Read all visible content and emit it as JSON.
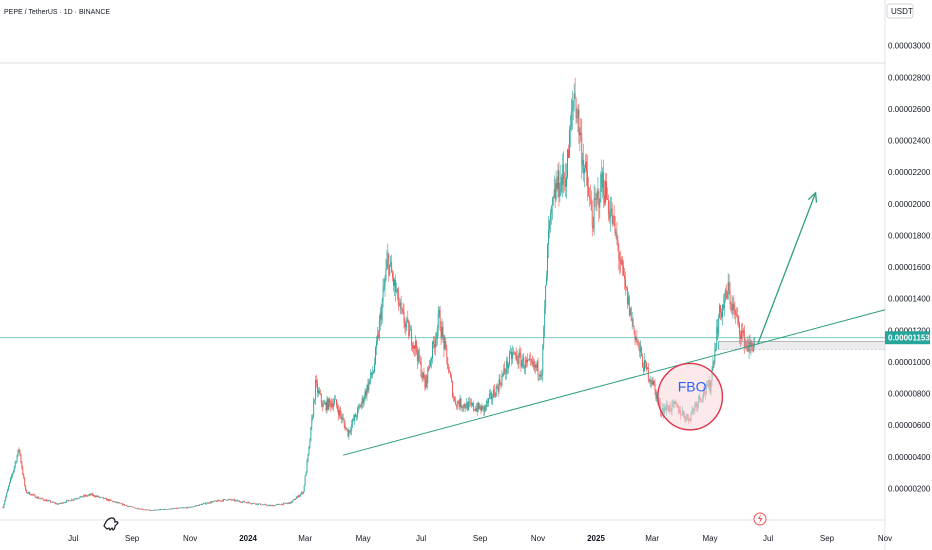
{
  "header": {
    "symbol_title": "PEPE / TetherUS · 1D · BINANCE",
    "currency_button": "USDT"
  },
  "price_label": "0.00001153",
  "annotation_text": "FBO",
  "colors": {
    "up": "#26a69a",
    "down": "#ef5350",
    "trendline": "#2e9e7e",
    "price_line": "#26a69a",
    "fbo_circle": "#e0344a",
    "fbo_fill": "#f9d7dc",
    "grid_line": "#d1d4dc"
  },
  "chart_data": {
    "type": "line",
    "title": "PEPE / TetherUS · 1D · BINANCE",
    "x_tick_labels": [
      "Jul",
      "Sep",
      "Nov",
      "2024",
      "Mar",
      "May",
      "Jul",
      "Sep",
      "Nov",
      "2025",
      "Mar",
      "May",
      "Jul",
      "Sep",
      "Nov"
    ],
    "x_tick_dates": [
      "2023-07-01",
      "2023-09-01",
      "2023-11-01",
      "2024-01-01",
      "2024-03-01",
      "2024-05-01",
      "2024-07-01",
      "2024-09-01",
      "2024-11-01",
      "2025-01-01",
      "2025-03-01",
      "2025-05-01",
      "2025-07-01",
      "2025-09-01",
      "2025-11-01"
    ],
    "y_tick_labels": [
      "0.00000200",
      "0.00000400",
      "0.00000600",
      "0.00000800",
      "0.00001000",
      "0.00001200",
      "0.00001400",
      "0.00001600",
      "0.00001800",
      "0.00002000",
      "0.00002200",
      "0.00002400",
      "0.00002600",
      "0.00002800",
      "0.00003000"
    ],
    "y_ticks": [
      2e-06,
      4e-06,
      6e-06,
      8e-06,
      1e-05,
      1.2e-05,
      1.4e-05,
      1.6e-05,
      1.8e-05,
      2e-05,
      2.2e-05,
      2.4e-05,
      2.6e-05,
      2.8e-05,
      3e-05
    ],
    "ylim": [
      0,
      3.15e-05
    ],
    "xlim": [
      "2023-04-15",
      "2025-11-01"
    ],
    "last_price": 1.153e-05,
    "price_series": [
      [
        "2023-04-18",
        8e-07
      ],
      [
        "2023-05-05",
        4.5e-06
      ],
      [
        "2023-05-12",
        1.8e-06
      ],
      [
        "2023-05-25",
        1.4e-06
      ],
      [
        "2023-06-15",
        1e-06
      ],
      [
        "2023-07-05",
        1.4e-06
      ],
      [
        "2023-07-20",
        1.6e-06
      ],
      [
        "2023-08-10",
        1.2e-06
      ],
      [
        "2023-09-01",
        8e-07
      ],
      [
        "2023-09-20",
        6e-07
      ],
      [
        "2023-10-10",
        7e-07
      ],
      [
        "2023-11-01",
        8e-07
      ],
      [
        "2023-11-20",
        1.1e-06
      ],
      [
        "2023-12-10",
        1.3e-06
      ],
      [
        "2024-01-01",
        1.1e-06
      ],
      [
        "2024-01-25",
        9e-07
      ],
      [
        "2024-02-15",
        1.1e-06
      ],
      [
        "2024-02-28",
        1.8e-06
      ],
      [
        "2024-03-05",
        4.5e-06
      ],
      [
        "2024-03-12",
        8.5e-06
      ],
      [
        "2024-03-20",
        7.2e-06
      ],
      [
        "2024-04-01",
        7.5e-06
      ],
      [
        "2024-04-15",
        5.5e-06
      ],
      [
        "2024-04-30",
        7.5e-06
      ],
      [
        "2024-05-12",
        9.5e-06
      ],
      [
        "2024-05-27",
        1.65e-05
      ],
      [
        "2024-06-10",
        1.3e-05
      ],
      [
        "2024-06-25",
        1.1e-05
      ],
      [
        "2024-07-05",
        8.5e-06
      ],
      [
        "2024-07-20",
        1.28e-05
      ],
      [
        "2024-08-05",
        7.5e-06
      ],
      [
        "2024-08-20",
        7.2e-06
      ],
      [
        "2024-09-05",
        7e-06
      ],
      [
        "2024-09-20",
        8.5e-06
      ],
      [
        "2024-10-05",
        1.05e-05
      ],
      [
        "2024-10-20",
        9.8e-06
      ],
      [
        "2024-11-05",
        9.5e-06
      ],
      [
        "2024-11-12",
        1.8e-05
      ],
      [
        "2024-11-20",
        2.1e-05
      ],
      [
        "2024-12-01",
        2.2e-05
      ],
      [
        "2024-12-09",
        2.72e-05
      ],
      [
        "2024-12-18",
        2.3e-05
      ],
      [
        "2024-12-28",
        1.9e-05
      ],
      [
        "2025-01-08",
        2.15e-05
      ],
      [
        "2025-01-20",
        1.85e-05
      ],
      [
        "2025-02-01",
        1.45e-05
      ],
      [
        "2025-02-10",
        1.2e-05
      ],
      [
        "2025-02-20",
        9.8e-06
      ],
      [
        "2025-03-01",
        8.8e-06
      ],
      [
        "2025-03-10",
        7e-06
      ],
      [
        "2025-03-25",
        7.2e-06
      ],
      [
        "2025-04-08",
        6.4e-06
      ],
      [
        "2025-04-20",
        7.8e-06
      ],
      [
        "2025-05-01",
        8.5e-06
      ],
      [
        "2025-05-10",
        1.28e-05
      ],
      [
        "2025-05-20",
        1.45e-05
      ],
      [
        "2025-05-27",
        1.3e-05
      ],
      [
        "2025-06-05",
        1.15e-05
      ],
      [
        "2025-06-12",
        1.08e-05
      ],
      [
        "2025-06-18",
        1.153e-05
      ]
    ],
    "annotations": [
      {
        "type": "trendline",
        "from": [
          "2024-04-10",
          4.1e-06
        ],
        "to": [
          "2025-11-01",
          1.33e-05
        ]
      },
      {
        "type": "arrow",
        "from": [
          "2025-06-20",
          1.11e-05
        ],
        "to": [
          "2025-08-20",
          2.07e-05
        ]
      },
      {
        "type": "ellipse",
        "label": "FBO",
        "center": [
          "2025-04-10",
          7.8e-06
        ],
        "rx_days": 34,
        "ry_value": 2.1e-06
      }
    ]
  }
}
